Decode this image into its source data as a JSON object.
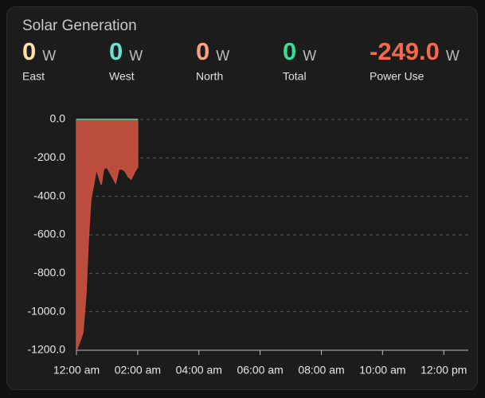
{
  "card": {
    "title": "Solar Generation"
  },
  "stats": {
    "names": [
      "East",
      "West",
      "North",
      "Total",
      "Power Use"
    ],
    "values": [
      0,
      0,
      0,
      0,
      -249
    ],
    "value_labels": [
      "0",
      "0",
      "0",
      "0",
      "-249.0"
    ],
    "unit": "W",
    "colors": [
      "#ffe1a8",
      "#6ee0d2",
      "#f7a27e",
      "#3ddc97",
      "#f26a4f"
    ]
  },
  "chart_data": {
    "type": "area",
    "x": [
      0,
      0.1,
      0.21,
      0.31,
      0.39,
      0.47,
      0.57,
      0.65,
      0.73,
      0.81,
      0.89,
      0.99,
      1.07,
      1.17,
      1.28,
      1.38,
      1.48,
      1.59,
      1.69,
      1.79,
      1.9,
      2.0
    ],
    "series": [
      {
        "color": "#3ddc97",
        "values": [
          0,
          0,
          0,
          0,
          0,
          0,
          0,
          0,
          0,
          0,
          0,
          0,
          0,
          0,
          0,
          0,
          0,
          0,
          0,
          0,
          0,
          0
        ]
      },
      {
        "color": "#c4503e",
        "values": [
          -1200,
          -1159,
          -1109,
          -910,
          -621,
          -414,
          -331,
          -257,
          -298,
          -339,
          -257,
          -248,
          -269,
          -298,
          -331,
          -261,
          -257,
          -269,
          -298,
          -310,
          -273,
          -248
        ]
      }
    ],
    "xlim": [
      0,
      12.8
    ],
    "xticks": [
      {
        "value": 0,
        "label": "12:00 am"
      },
      {
        "value": 2,
        "label": "02:00 am"
      },
      {
        "value": 4,
        "label": "04:00 am"
      },
      {
        "value": 6,
        "label": "06:00 am"
      },
      {
        "value": 8,
        "label": "08:00 am"
      },
      {
        "value": 10,
        "label": "10:00 am"
      },
      {
        "value": 12,
        "label": "12:00 pm"
      }
    ],
    "ylim": [
      -1200,
      0
    ],
    "yticks": [
      {
        "value": 0,
        "label": "0.0"
      },
      {
        "value": -200,
        "label": "-200.0"
      },
      {
        "value": -400,
        "label": "-400.0"
      },
      {
        "value": -600,
        "label": "-600.0"
      },
      {
        "value": -800,
        "label": "-800.0"
      },
      {
        "value": -1000,
        "label": "-1000.0"
      },
      {
        "value": -1200,
        "label": "-1200.0"
      }
    ],
    "grid": true
  }
}
